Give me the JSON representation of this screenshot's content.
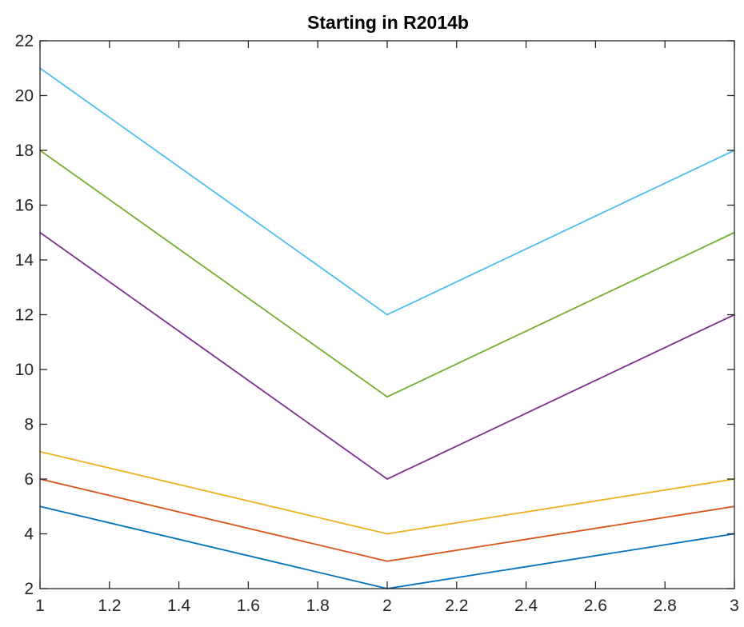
{
  "chart_data": {
    "type": "line",
    "title": "Starting in R2014b",
    "xlabel": "",
    "ylabel": "",
    "xlim": [
      1,
      3
    ],
    "ylim": [
      2,
      22
    ],
    "x_ticks": [
      "1",
      "1.2",
      "1.4",
      "1.6",
      "1.8",
      "2",
      "2.2",
      "2.4",
      "2.6",
      "2.8",
      "3"
    ],
    "y_ticks": [
      "2",
      "4",
      "6",
      "8",
      "10",
      "12",
      "14",
      "16",
      "18",
      "20",
      "22"
    ],
    "x": [
      1,
      2,
      3
    ],
    "grid": false,
    "legend": "none",
    "series": [
      {
        "values": [
          5,
          2,
          4
        ],
        "color": "#0072BD"
      },
      {
        "values": [
          6,
          3,
          5
        ],
        "color": "#D95319"
      },
      {
        "values": [
          7,
          4,
          6
        ],
        "color": "#EDB120"
      },
      {
        "values": [
          15,
          6,
          12
        ],
        "color": "#7E2F8E"
      },
      {
        "values": [
          18,
          9,
          15
        ],
        "color": "#77AC30"
      },
      {
        "values": [
          21,
          12,
          18
        ],
        "color": "#4DBEEE"
      }
    ]
  }
}
